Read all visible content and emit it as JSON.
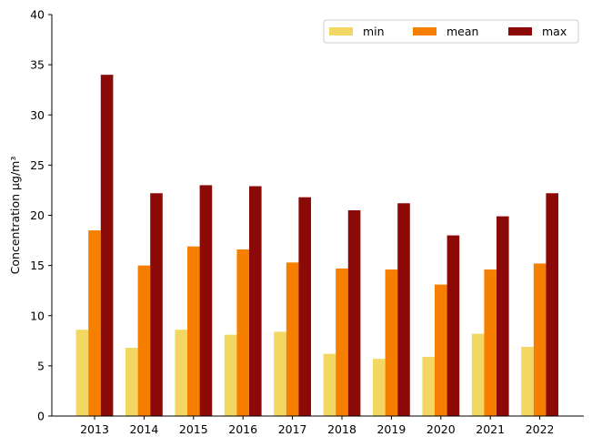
{
  "chart_data": {
    "type": "bar",
    "title": "",
    "xlabel": "",
    "ylabel": "Concentration µg/m³",
    "ylim": [
      0,
      40
    ],
    "yticks": [
      0,
      5,
      10,
      15,
      20,
      25,
      30,
      35,
      40
    ],
    "categories": [
      "2013",
      "2014",
      "2015",
      "2016",
      "2017",
      "2018",
      "2019",
      "2020",
      "2021",
      "2022"
    ],
    "series": [
      {
        "name": "min",
        "color": "#f2d862",
        "values": [
          8.6,
          6.8,
          8.6,
          8.1,
          8.4,
          6.2,
          5.7,
          5.9,
          8.2,
          6.9
        ]
      },
      {
        "name": "mean",
        "color": "#f77f00",
        "values": [
          18.5,
          15.0,
          16.9,
          16.6,
          15.3,
          14.7,
          14.6,
          13.1,
          14.6,
          15.2
        ]
      },
      {
        "name": "max",
        "color": "#8b0a08",
        "values": [
          34.0,
          22.2,
          23.0,
          22.9,
          21.8,
          20.5,
          21.2,
          18.0,
          19.9,
          22.2
        ]
      }
    ],
    "grid": false,
    "legend_position": "top-right"
  }
}
